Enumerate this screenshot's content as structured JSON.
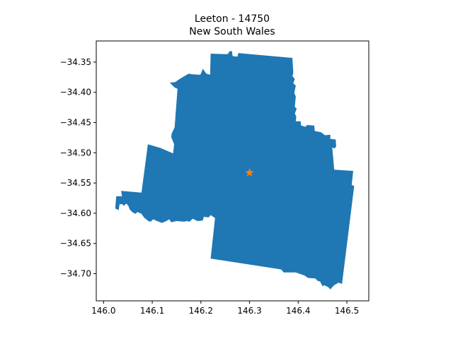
{
  "chart_data": {
    "type": "map",
    "title": "Leeton - 14750",
    "subtitle": "New South Wales",
    "xlim": [
      145.985,
      146.545
    ],
    "ylim": [
      -34.745,
      -34.315
    ],
    "x_ticks": [
      146.0,
      146.1,
      146.2,
      146.3,
      146.4,
      146.5
    ],
    "x_tick_labels": [
      "146.0",
      "146.1",
      "146.2",
      "146.3",
      "146.4",
      "146.5"
    ],
    "y_ticks": [
      -34.35,
      -34.4,
      -34.45,
      -34.5,
      -34.55,
      -34.6,
      -34.65,
      -34.7
    ],
    "y_tick_labels": [
      "−34.35",
      "−34.40",
      "−34.45",
      "−34.50",
      "−34.55",
      "−34.60",
      "−34.65",
      "−34.70"
    ],
    "region_color": "#1f77b4",
    "marker_color": "#ff7f0e",
    "marker": {
      "lon": 146.3,
      "lat": -34.533
    },
    "boundary": [
      [
        146.22,
        -34.336
      ],
      [
        146.255,
        -34.337
      ],
      [
        146.259,
        -34.332
      ],
      [
        146.264,
        -34.332
      ],
      [
        146.265,
        -34.34
      ],
      [
        146.275,
        -34.341
      ],
      [
        146.277,
        -34.335
      ],
      [
        146.388,
        -34.343
      ],
      [
        146.39,
        -34.368
      ],
      [
        146.388,
        -34.373
      ],
      [
        146.393,
        -34.378
      ],
      [
        146.39,
        -34.385
      ],
      [
        146.395,
        -34.389
      ],
      [
        146.392,
        -34.401
      ],
      [
        146.395,
        -34.407
      ],
      [
        146.393,
        -34.424
      ],
      [
        146.397,
        -34.427
      ],
      [
        146.393,
        -34.435
      ],
      [
        146.396,
        -34.44
      ],
      [
        146.395,
        -34.448
      ],
      [
        146.405,
        -34.448
      ],
      [
        146.406,
        -34.455
      ],
      [
        146.415,
        -34.457
      ],
      [
        146.418,
        -34.454
      ],
      [
        146.433,
        -34.455
      ],
      [
        146.434,
        -34.464
      ],
      [
        146.447,
        -34.466
      ],
      [
        146.455,
        -34.471
      ],
      [
        146.466,
        -34.47
      ],
      [
        146.466,
        -34.477
      ],
      [
        146.477,
        -34.478
      ],
      [
        146.478,
        -34.49
      ],
      [
        146.474,
        -34.493
      ],
      [
        146.47,
        -34.491
      ],
      [
        146.474,
        -34.528
      ],
      [
        146.513,
        -34.53
      ],
      [
        146.51,
        -34.553
      ],
      [
        146.515,
        -34.555
      ],
      [
        146.49,
        -34.717
      ],
      [
        146.483,
        -34.715
      ],
      [
        146.474,
        -34.719
      ],
      [
        146.469,
        -34.723
      ],
      [
        146.466,
        -34.726
      ],
      [
        146.461,
        -34.722
      ],
      [
        146.453,
        -34.719
      ],
      [
        146.45,
        -34.721
      ],
      [
        146.445,
        -34.713
      ],
      [
        146.44,
        -34.712
      ],
      [
        146.435,
        -34.708
      ],
      [
        146.42,
        -34.707
      ],
      [
        146.413,
        -34.703
      ],
      [
        146.395,
        -34.698
      ],
      [
        146.37,
        -34.698
      ],
      [
        146.365,
        -34.693
      ],
      [
        146.22,
        -34.675
      ],
      [
        146.229,
        -34.608
      ],
      [
        146.22,
        -34.603
      ],
      [
        146.216,
        -34.607
      ],
      [
        146.206,
        -34.606
      ],
      [
        146.204,
        -34.612
      ],
      [
        146.193,
        -34.613
      ],
      [
        146.183,
        -34.609
      ],
      [
        146.177,
        -34.614
      ],
      [
        146.171,
        -34.613
      ],
      [
        146.166,
        -34.614
      ],
      [
        146.15,
        -34.613
      ],
      [
        146.139,
        -34.615
      ],
      [
        146.135,
        -34.61
      ],
      [
        146.129,
        -34.613
      ],
      [
        146.12,
        -34.616
      ],
      [
        146.11,
        -34.613
      ],
      [
        146.102,
        -34.61
      ],
      [
        146.097,
        -34.614
      ],
      [
        146.092,
        -34.613
      ],
      [
        146.083,
        -34.607
      ],
      [
        146.078,
        -34.601
      ],
      [
        146.07,
        -34.598
      ],
      [
        146.065,
        -34.601
      ],
      [
        146.059,
        -34.598
      ],
      [
        146.054,
        -34.594
      ],
      [
        146.051,
        -34.588
      ],
      [
        146.047,
        -34.584
      ],
      [
        146.041,
        -34.588
      ],
      [
        146.039,
        -34.585
      ],
      [
        146.033,
        -34.585
      ],
      [
        146.031,
        -34.595
      ],
      [
        146.024,
        -34.592
      ],
      [
        146.026,
        -34.572
      ],
      [
        146.038,
        -34.572
      ],
      [
        146.036,
        -34.563
      ],
      [
        146.078,
        -34.566
      ],
      [
        146.091,
        -34.486
      ],
      [
        146.117,
        -34.492
      ],
      [
        146.143,
        -34.501
      ],
      [
        146.145,
        -34.486
      ],
      [
        146.139,
        -34.474
      ],
      [
        146.14,
        -34.468
      ],
      [
        146.146,
        -34.458
      ],
      [
        146.152,
        -34.394
      ],
      [
        146.146,
        -34.392
      ],
      [
        146.136,
        -34.384
      ],
      [
        146.147,
        -34.383
      ],
      [
        146.158,
        -34.377
      ],
      [
        146.175,
        -34.369
      ],
      [
        146.181,
        -34.37
      ],
      [
        146.199,
        -34.371
      ],
      [
        146.204,
        -34.361
      ],
      [
        146.211,
        -34.369
      ],
      [
        146.219,
        -34.371
      ]
    ]
  }
}
